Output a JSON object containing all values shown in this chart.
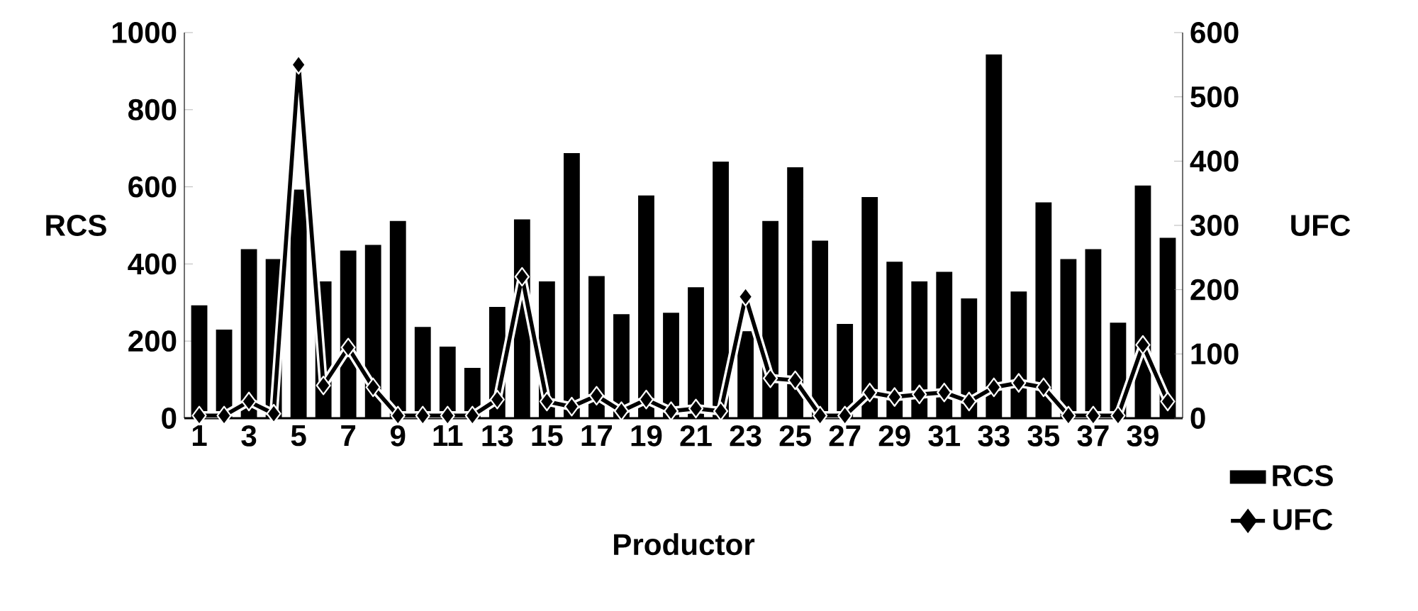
{
  "chart_data": {
    "type": "bar",
    "xlabel": "Productor",
    "ylabel": "RCS",
    "y2label": "UFC",
    "categories": [
      "1",
      null,
      "3",
      null,
      "5",
      null,
      "7",
      null,
      "9",
      null,
      "11",
      null,
      "13",
      null,
      "15",
      null,
      "17",
      null,
      "19",
      null,
      "21",
      null,
      "23",
      null,
      "25",
      null,
      "27",
      null,
      "29",
      null,
      "31",
      null,
      "33",
      null,
      "35",
      null,
      "37",
      null,
      "39",
      null
    ],
    "series": [
      {
        "name": "RCS",
        "color": "#000000",
        "values": [
          290,
          227,
          436,
          410,
          590,
          352,
          432,
          447,
          509,
          234,
          183,
          128,
          286,
          513,
          352,
          685,
          366,
          267,
          575,
          271,
          337,
          663,
          223,
          509,
          648,
          458,
          242,
          571,
          403,
          352,
          377,
          308,
          941,
          326,
          557,
          410,
          436,
          245,
          601,
          465
        ]
      },
      {
        "name": "UFC",
        "type": "line",
        "axis": "y2",
        "color": "#000000",
        "marker": "diamond",
        "values": [
          4,
          4,
          26,
          7,
          550,
          51,
          110,
          48,
          4,
          4,
          4,
          4,
          29,
          220,
          26,
          18,
          35,
          11,
          29,
          11,
          15,
          11,
          189,
          62,
          59,
          4,
          4,
          40,
          33,
          37,
          40,
          26,
          48,
          55,
          48,
          4,
          4,
          4,
          114,
          26
        ]
      }
    ],
    "ylim": [
      0,
      1000
    ],
    "yticks": [
      0,
      200,
      400,
      600,
      800,
      1000
    ],
    "y2lim": [
      0,
      600
    ],
    "y2ticks": [
      0,
      100,
      200,
      300,
      400,
      500,
      600
    ],
    "legend": "bottom right",
    "grid": false
  }
}
